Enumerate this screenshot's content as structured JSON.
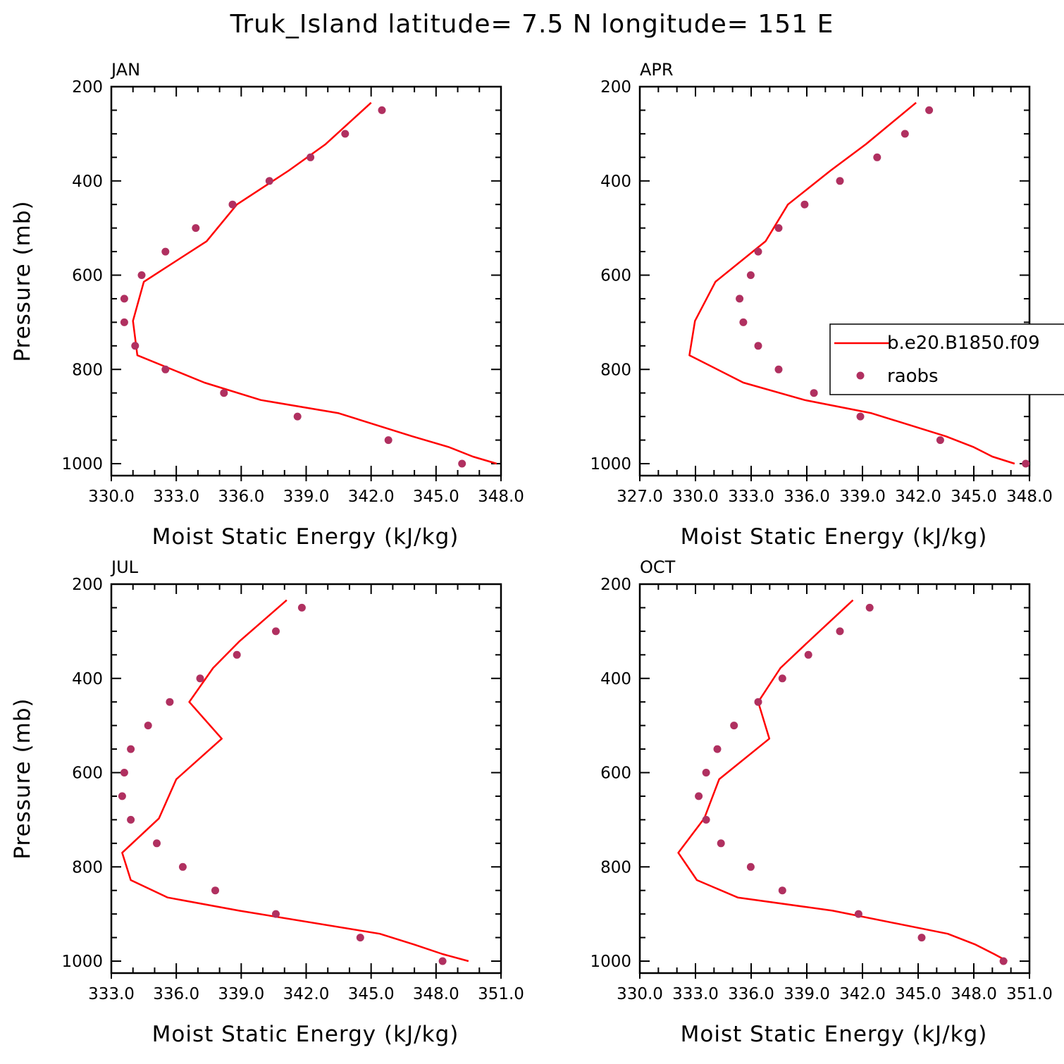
{
  "colors": {
    "model": "#ff0000",
    "obs": "#b03060",
    "frame": "#000000"
  },
  "chart_data": {
    "title": "Truk_Island   latitude= 7.5 N longitude= 151 E",
    "legend": {
      "placement": "right-middle",
      "entries": [
        "b.e20.B1850.f09",
        "raobs"
      ]
    },
    "panels": [
      {
        "type": "line",
        "label": "JAN",
        "xlabel": "Moist Static Energy (kJ/kg)",
        "ylabel": "Pressure (mb)",
        "xlim": [
          330,
          348
        ],
        "ylim": [
          1000,
          200
        ],
        "xticks": [
          "330.0",
          "333.0",
          "336.0",
          "339.0",
          "342.0",
          "345.0",
          "348.0"
        ],
        "yticks": [
          "200",
          "400",
          "600",
          "800",
          "1000"
        ],
        "series": [
          {
            "name": "b.e20.B1850.f09",
            "kind": "line",
            "x": [
              347.8,
              346.7,
              345.6,
              343.9,
              340.5,
              336.9,
              334.3,
              331.2,
              331.0,
              331.5,
              334.4,
              335.8,
              338.2,
              339.9,
              342.0
            ],
            "y": [
              1000,
              985,
              965,
              942,
              893,
              865,
              828,
              770,
              697,
              614,
              528,
              450,
              378,
              322,
              234
            ]
          },
          {
            "name": "raobs",
            "kind": "scatter",
            "x": [
              346.2,
              342.8,
              338.6,
              335.2,
              332.5,
              331.1,
              330.6,
              330.6,
              331.4,
              332.5,
              333.9,
              335.6,
              337.3,
              339.2,
              340.8,
              342.5
            ],
            "y": [
              1000,
              950,
              900,
              850,
              800,
              750,
              700,
              650,
              600,
              550,
              500,
              450,
              400,
              350,
              300,
              250
            ]
          }
        ]
      },
      {
        "type": "line",
        "label": "APR",
        "xlabel": "Moist Static Energy (kJ/kg)",
        "ylabel": "",
        "xlim": [
          327.03,
          348.0
        ],
        "ylim": [
          1000,
          200
        ],
        "xticks": [
          "327.0",
          "330.0",
          "333.0",
          "336.0",
          "339.0",
          "342.0",
          "345.0",
          "348.0"
        ],
        "yticks": [
          "200",
          "400",
          "600",
          "800",
          "1000"
        ],
        "series": [
          {
            "name": "b.e20.B1850.f09",
            "kind": "line",
            "x": [
              347.2,
              346.0,
              345.0,
              343.5,
              339.5,
              335.9,
              332.6,
              329.7,
              330.0,
              331.1,
              333.8,
              335.0,
              337.3,
              339.2,
              341.9
            ],
            "y": [
              1000,
              985,
              965,
              942,
              893,
              865,
              828,
              770,
              697,
              614,
              528,
              450,
              378,
              322,
              234
            ]
          },
          {
            "name": "raobs",
            "kind": "scatter",
            "x": [
              347.8,
              343.2,
              338.9,
              336.4,
              334.5,
              333.4,
              332.6,
              332.4,
              333.0,
              333.4,
              334.5,
              335.9,
              337.8,
              339.8,
              341.3,
              342.6
            ],
            "y": [
              1000,
              950,
              900,
              850,
              800,
              750,
              700,
              650,
              600,
              550,
              500,
              450,
              400,
              350,
              300,
              250
            ]
          }
        ]
      },
      {
        "type": "line",
        "label": "JUL",
        "xlabel": "Moist Static Energy (kJ/kg)",
        "ylabel": "Pressure (mb)",
        "xlim": [
          333,
          351
        ],
        "ylim": [
          1000,
          200
        ],
        "xticks": [
          "333.0",
          "336.0",
          "339.0",
          "342.0",
          "345.0",
          "348.0",
          "351.0"
        ],
        "yticks": [
          "200",
          "400",
          "600",
          "800",
          "1000"
        ],
        "series": [
          {
            "name": "b.e20.B1850.f09",
            "kind": "line",
            "x": [
              349.5,
              348.3,
              347.0,
              345.4,
              338.9,
              335.6,
              333.9,
              333.5,
              335.2,
              336.0,
              338.1,
              336.6,
              337.7,
              338.9,
              341.1
            ],
            "y": [
              1000,
              985,
              965,
              942,
              893,
              865,
              828,
              770,
              697,
              614,
              528,
              450,
              378,
              322,
              234
            ]
          },
          {
            "name": "raobs",
            "kind": "scatter",
            "x": [
              348.3,
              344.5,
              340.6,
              337.8,
              336.3,
              335.1,
              333.9,
              333.5,
              333.6,
              333.9,
              334.7,
              335.7,
              337.1,
              338.8,
              340.6,
              341.8
            ],
            "y": [
              1000,
              950,
              900,
              850,
              800,
              750,
              700,
              650,
              600,
              550,
              500,
              450,
              400,
              350,
              300,
              250
            ]
          }
        ]
      },
      {
        "type": "line",
        "label": "OCT",
        "xlabel": "Moist Static Energy (kJ/kg)",
        "ylabel": "",
        "xlim": [
          330.03,
          351.0
        ],
        "ylim": [
          1000,
          200
        ],
        "xticks": [
          "330.0",
          "333.0",
          "336.0",
          "339.0",
          "342.0",
          "345.0",
          "348.0",
          "351.0"
        ],
        "yticks": [
          "200",
          "400",
          "600",
          "800",
          "1000"
        ],
        "series": [
          {
            "name": "b.e20.B1850.f09",
            "kind": "line",
            "x": [
              349.8,
              349.1,
              348.1,
              346.6,
              340.4,
              335.3,
              333.1,
              332.1,
              333.5,
              334.3,
              337.0,
              336.4,
              337.6,
              339.1,
              341.5
            ],
            "y": [
              1000,
              985,
              965,
              942,
              893,
              865,
              828,
              770,
              697,
              614,
              528,
              450,
              378,
              322,
              234
            ]
          },
          {
            "name": "raobs",
            "kind": "scatter",
            "x": [
              349.6,
              345.2,
              341.8,
              337.7,
              336.0,
              334.4,
              333.6,
              333.2,
              333.6,
              334.2,
              335.1,
              336.4,
              337.7,
              339.1,
              340.8,
              342.4
            ],
            "y": [
              1000,
              950,
              900,
              850,
              800,
              750,
              700,
              650,
              600,
              550,
              500,
              450,
              400,
              350,
              300,
              250
            ]
          }
        ]
      }
    ]
  }
}
